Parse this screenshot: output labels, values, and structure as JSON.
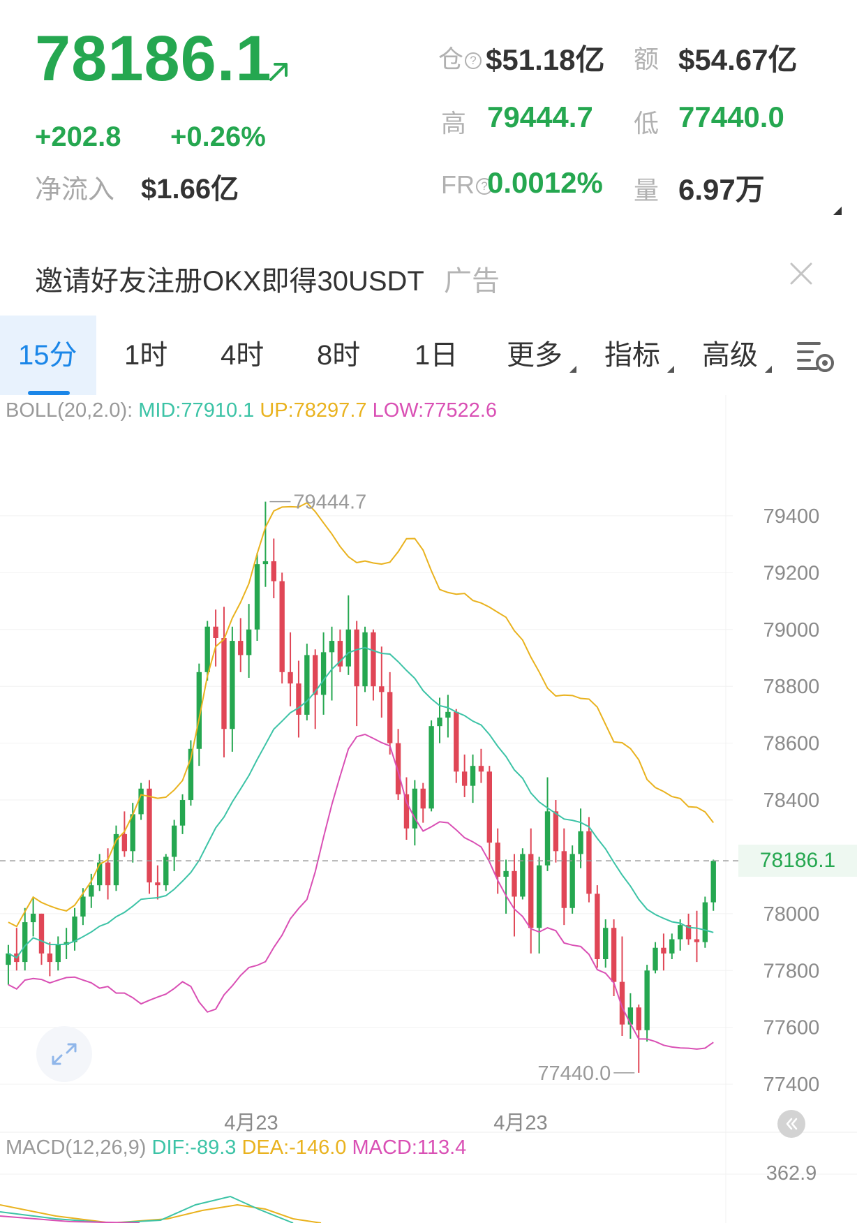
{
  "header": {
    "last_price": "78186.1",
    "change_abs": "+202.8",
    "change_pct": "+0.26%",
    "netflow_label": "净流入",
    "netflow_value": "$1.66亿",
    "open_interest_label": "仓",
    "open_interest_value": "$51.18亿",
    "turnover_label": "额",
    "turnover_value": "$54.67亿",
    "high_label": "高",
    "high_value": "79444.7",
    "low_label": "低",
    "low_value": "77440.0",
    "funding_label": "FR",
    "funding_value": "0.0012%",
    "volume_label": "量",
    "volume_value": "6.97万",
    "up_color": "#25a750",
    "down_color": "#e04656"
  },
  "ad": {
    "text": "邀请好友注册OKX即得30USDT",
    "tag": "广告"
  },
  "tabs": [
    {
      "label": "15分",
      "active": true
    },
    {
      "label": "1时",
      "active": false
    },
    {
      "label": "4时",
      "active": false
    },
    {
      "label": "8时",
      "active": false
    },
    {
      "label": "1日",
      "active": false
    },
    {
      "label": "更多",
      "active": false,
      "dropdown": true
    },
    {
      "label": "指标",
      "active": false,
      "dropdown": true
    },
    {
      "label": "高级",
      "active": false,
      "dropdown": true
    }
  ],
  "indicators": {
    "boll_name": "BOLL(20,2.0):",
    "boll_mid": "MID:77910.1",
    "boll_up": "UP:78297.7",
    "boll_low": "LOW:77522.6",
    "macd_name": "MACD(12,26,9)",
    "macd_dif": "DIF:-89.3",
    "macd_dea": "DEA:-146.0",
    "macd_val": "MACD:113.4",
    "macd_scale_top": "362.9",
    "mid_color": "#3cc3a6",
    "up_color": "#e9b21e",
    "low_color": "#d94fb4"
  },
  "chart_data": {
    "type": "candlestick",
    "y_ticks": [
      79400,
      79200,
      79000,
      78800,
      78600,
      78400,
      78000,
      77800,
      77600,
      77400
    ],
    "ylim": [
      77280,
      79530
    ],
    "x_tick_labels": [
      "4月23",
      "4月23"
    ],
    "current_price": 78186.1,
    "current_price_label": "78186.1",
    "high_marker": "79444.7",
    "low_marker": "77440.0",
    "candles": [
      [
        77820,
        77890,
        77750,
        77860
      ],
      [
        77860,
        77950,
        77800,
        77830
      ],
      [
        77830,
        78020,
        77800,
        77970
      ],
      [
        77970,
        78060,
        77920,
        78000
      ],
      [
        78000,
        78000,
        77820,
        77860
      ],
      [
        77860,
        77900,
        77780,
        77830
      ],
      [
        77830,
        77920,
        77800,
        77890
      ],
      [
        77890,
        77950,
        77840,
        77900
      ],
      [
        77900,
        78020,
        77870,
        77990
      ],
      [
        77990,
        78090,
        77960,
        78060
      ],
      [
        78060,
        78140,
        78020,
        78100
      ],
      [
        78100,
        78210,
        78080,
        78180
      ],
      [
        78180,
        78230,
        78050,
        78100
      ],
      [
        78100,
        78310,
        78080,
        78280
      ],
      [
        78280,
        78360,
        78200,
        78220
      ],
      [
        78220,
        78390,
        78180,
        78350
      ],
      [
        78350,
        78460,
        78330,
        78440
      ],
      [
        78440,
        78470,
        78070,
        78110
      ],
      [
        78110,
        78170,
        78050,
        78100
      ],
      [
        78100,
        78210,
        78080,
        78200
      ],
      [
        78200,
        78330,
        78150,
        78310
      ],
      [
        78310,
        78420,
        78280,
        78400
      ],
      [
        78400,
        78610,
        78380,
        78580
      ],
      [
        78580,
        78880,
        78520,
        78850
      ],
      [
        78850,
        79030,
        78820,
        79010
      ],
      [
        79010,
        79070,
        78870,
        78970
      ],
      [
        78970,
        79080,
        78550,
        78650
      ],
      [
        78650,
        79010,
        78570,
        78960
      ],
      [
        78960,
        79040,
        78850,
        78910
      ],
      [
        78910,
        79090,
        78830,
        79000
      ],
      [
        79000,
        79270,
        78960,
        79230
      ],
      [
        79230,
        79450,
        79150,
        79240
      ],
      [
        79240,
        79320,
        79110,
        79170
      ],
      [
        79170,
        79200,
        78810,
        78850
      ],
      [
        78850,
        78990,
        78730,
        78810
      ],
      [
        78810,
        78890,
        78620,
        78700
      ],
      [
        78700,
        78950,
        78680,
        78910
      ],
      [
        78910,
        78930,
        78650,
        78770
      ],
      [
        78770,
        78990,
        78700,
        78920
      ],
      [
        78920,
        79010,
        78750,
        78960
      ],
      [
        78960,
        79000,
        78850,
        78870
      ],
      [
        78870,
        79120,
        78840,
        79000
      ],
      [
        79000,
        79030,
        78660,
        78800
      ],
      [
        78800,
        79010,
        78780,
        78990
      ],
      [
        78990,
        79000,
        78750,
        78800
      ],
      [
        78800,
        78940,
        78690,
        78780
      ],
      [
        78780,
        78850,
        78560,
        78600
      ],
      [
        78600,
        78650,
        78400,
        78420
      ],
      [
        78420,
        78480,
        78260,
        78300
      ],
      [
        78300,
        78470,
        78240,
        78440
      ],
      [
        78440,
        78460,
        78320,
        78370
      ],
      [
        78370,
        78680,
        78360,
        78660
      ],
      [
        78660,
        78760,
        78600,
        78690
      ],
      [
        78690,
        78770,
        78620,
        78710
      ],
      [
        78710,
        78720,
        78460,
        78500
      ],
      [
        78500,
        78560,
        78410,
        78450
      ],
      [
        78450,
        78560,
        78390,
        78520
      ],
      [
        78520,
        78580,
        78460,
        78500
      ],
      [
        78500,
        78520,
        78190,
        78250
      ],
      [
        78250,
        78300,
        78070,
        78130
      ],
      [
        78130,
        78190,
        78000,
        78150
      ],
      [
        78150,
        78210,
        77920,
        78060
      ],
      [
        78060,
        78230,
        78050,
        78210
      ],
      [
        78210,
        78300,
        77860,
        77950
      ],
      [
        77950,
        78200,
        77860,
        78170
      ],
      [
        78170,
        78480,
        78150,
        78360
      ],
      [
        78360,
        78400,
        78180,
        78220
      ],
      [
        78220,
        78300,
        77960,
        78020
      ],
      [
        78020,
        78240,
        78000,
        78210
      ],
      [
        78210,
        78370,
        78160,
        78290
      ],
      [
        78290,
        78340,
        78040,
        78070
      ],
      [
        78070,
        78100,
        77810,
        77840
      ],
      [
        77840,
        77980,
        77810,
        77950
      ],
      [
        77950,
        77980,
        77710,
        77760
      ],
      [
        77760,
        77920,
        77570,
        77610
      ],
      [
        77610,
        77720,
        77560,
        77670
      ],
      [
        77670,
        77680,
        77440,
        77590
      ],
      [
        77590,
        77820,
        77550,
        77800
      ],
      [
        77800,
        77900,
        77790,
        77880
      ],
      [
        77880,
        77930,
        77800,
        77860
      ],
      [
        77860,
        77930,
        77840,
        77910
      ],
      [
        77910,
        77980,
        77870,
        77960
      ],
      [
        77960,
        78000,
        77890,
        77910
      ],
      [
        77910,
        78010,
        77830,
        77900
      ],
      [
        77900,
        78060,
        77880,
        78040
      ],
      [
        78040,
        78190,
        78010,
        78186
      ]
    ],
    "series": [
      {
        "name": "UP"
      },
      {
        "name": "MID"
      },
      {
        "name": "LOW"
      }
    ]
  }
}
